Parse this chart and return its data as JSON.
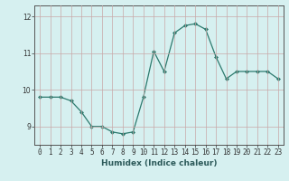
{
  "x": [
    0,
    1,
    2,
    3,
    4,
    5,
    6,
    7,
    8,
    9,
    10,
    11,
    12,
    13,
    14,
    15,
    16,
    17,
    18,
    19,
    20,
    21,
    22,
    23
  ],
  "y": [
    9.8,
    9.8,
    9.8,
    9.7,
    9.4,
    9.0,
    9.0,
    8.85,
    8.8,
    8.85,
    9.8,
    11.05,
    10.5,
    11.55,
    11.75,
    11.8,
    11.65,
    10.9,
    10.3,
    10.5,
    10.5,
    10.5,
    10.5,
    10.3
  ],
  "line_color": "#2d7a6e",
  "marker": "D",
  "marker_size": 2.0,
  "bg_color": "#d6f0f0",
  "grid_color_v": "#c8a8a8",
  "grid_color_h": "#c8a8a8",
  "xlabel": "Humidex (Indice chaleur)",
  "xlim": [
    -0.5,
    23.5
  ],
  "ylim": [
    8.5,
    12.3
  ],
  "yticks": [
    9,
    10,
    11,
    12
  ],
  "xticks": [
    0,
    1,
    2,
    3,
    4,
    5,
    6,
    7,
    8,
    9,
    10,
    11,
    12,
    13,
    14,
    15,
    16,
    17,
    18,
    19,
    20,
    21,
    22,
    23
  ],
  "xlabel_fontsize": 6.5,
  "tick_fontsize": 5.5,
  "spine_color": "#555555"
}
